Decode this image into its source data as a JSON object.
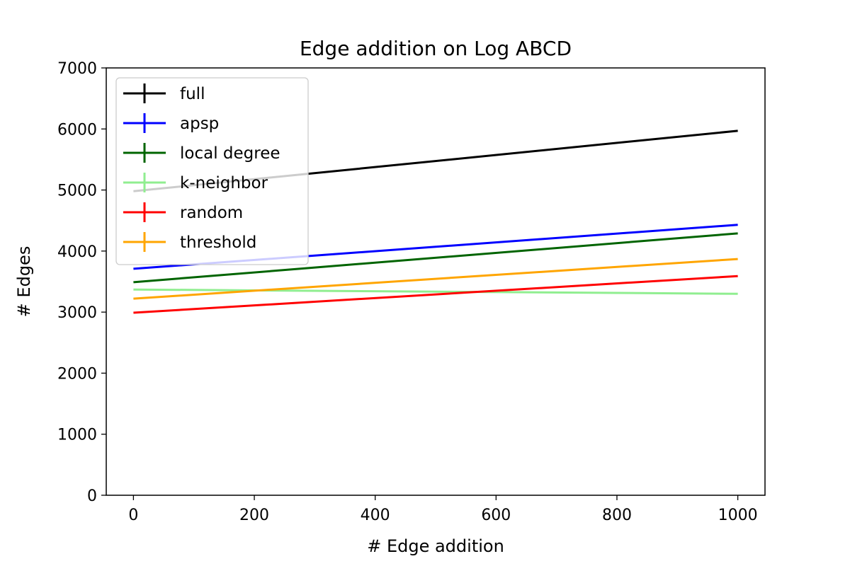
{
  "chart_data": {
    "type": "line",
    "title": "Edge addition on Log ABCD",
    "xlabel": "# Edge addition",
    "ylabel": "# Edges",
    "xlim": [
      -45,
      1045
    ],
    "ylim": [
      0,
      7000
    ],
    "xticks": [
      0,
      200,
      400,
      600,
      800,
      1000
    ],
    "yticks": [
      0,
      1000,
      2000,
      3000,
      4000,
      5000,
      6000,
      7000
    ],
    "grid": false,
    "legend_position": "top-left",
    "series": [
      {
        "name": "full",
        "color": "#000000",
        "x": [
          0,
          1000
        ],
        "y": [
          4980,
          5970
        ]
      },
      {
        "name": "apsp",
        "color": "#0000ff",
        "x": [
          0,
          1000
        ],
        "y": [
          3710,
          4430
        ]
      },
      {
        "name": "local degree",
        "color": "#006400",
        "x": [
          0,
          1000
        ],
        "y": [
          3490,
          4290
        ]
      },
      {
        "name": "k-neighbor",
        "color": "#90ee90",
        "x": [
          0,
          1000
        ],
        "y": [
          3370,
          3300
        ]
      },
      {
        "name": "random",
        "color": "#ff0000",
        "x": [
          0,
          1000
        ],
        "y": [
          2990,
          3590
        ]
      },
      {
        "name": "threshold",
        "color": "#ffa500",
        "x": [
          0,
          1000
        ],
        "y": [
          3220,
          3870
        ]
      }
    ]
  }
}
